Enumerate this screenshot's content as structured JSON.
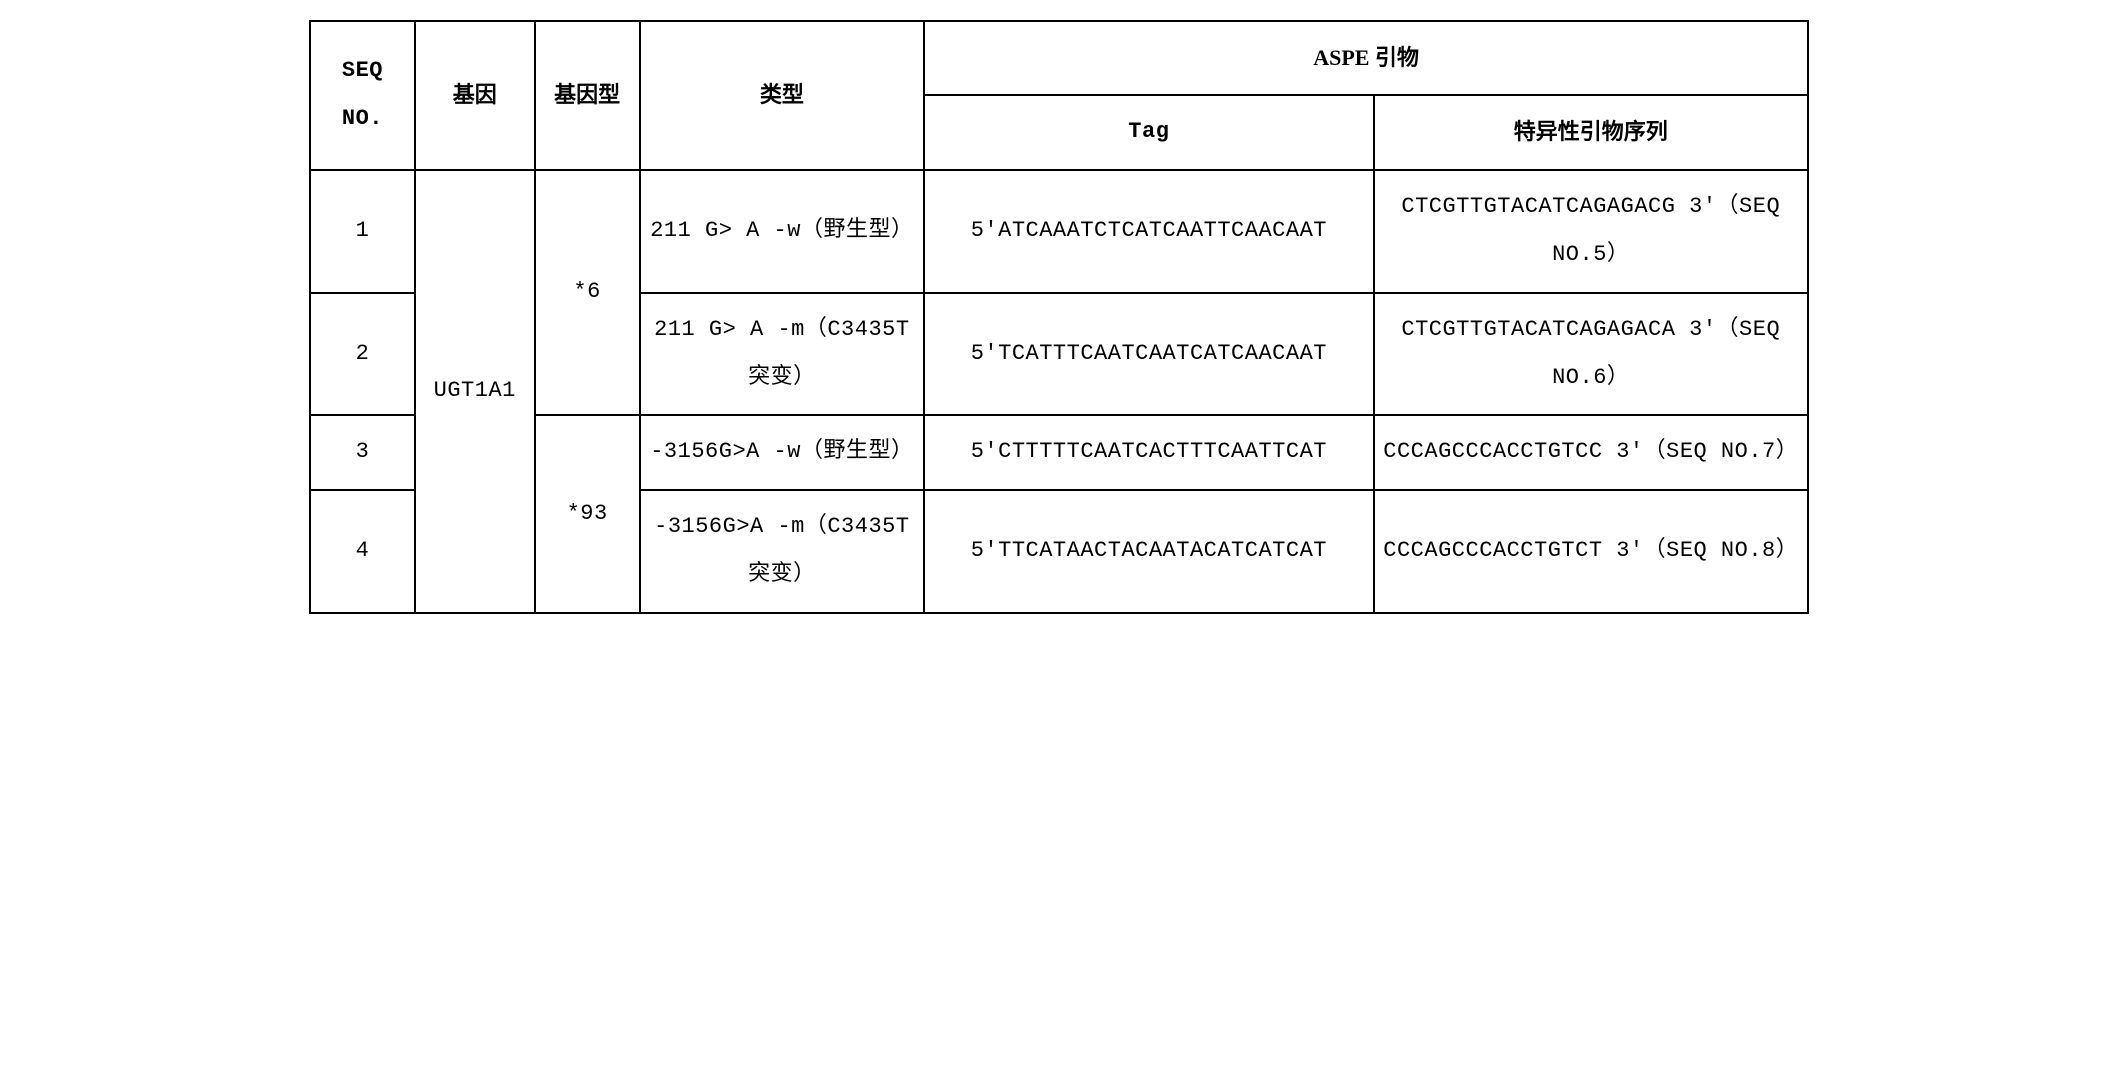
{
  "table": {
    "headers": {
      "seq_no": "SEQ NO.",
      "gene": "基因",
      "genotype": "基因型",
      "type": "类型",
      "aspe_primer": "ASPE 引物",
      "tag": "Tag",
      "specific_primer": "特异性引物序列"
    },
    "gene_label": "UGT1A1",
    "genotype_1": "*6",
    "genotype_2": "*93",
    "rows": [
      {
        "seq": "1",
        "type": "211 G> A -w（野生型）",
        "tag": "5'ATCAAATCTCATCAATTCAACAAT",
        "primer": "CTCGTTGTACATCAGAGACG 3'（SEQ NO.5）"
      },
      {
        "seq": "2",
        "type": "211 G> A -m（C3435T 突变）",
        "tag": "5'TCATTTCAATCAATCATCAACAAT",
        "primer": "CTCGTTGTACATCAGAGACA 3'（SEQ NO.6）"
      },
      {
        "seq": "3",
        "type": "-3156G>A -w（野生型）",
        "tag": "5'CTTTTTCAATCACTTTCAATTCAT",
        "primer": "CCCAGCCCACCTGTCC 3'（SEQ NO.7）"
      },
      {
        "seq": "4",
        "type": "-3156G>A -m（C3435T 突变）",
        "tag": "5'TTCATAACTACAATACATCATCAT",
        "primer": "CCCAGCCCACCTGTCT 3'（SEQ NO.8）"
      }
    ],
    "styling": {
      "border_color": "#000000",
      "border_width": 2,
      "background_color": "#ffffff",
      "text_color": "#000000",
      "font_size": 22,
      "line_height": 2.2,
      "mono_font": "Courier New",
      "serif_font": "Times New Roman"
    }
  }
}
